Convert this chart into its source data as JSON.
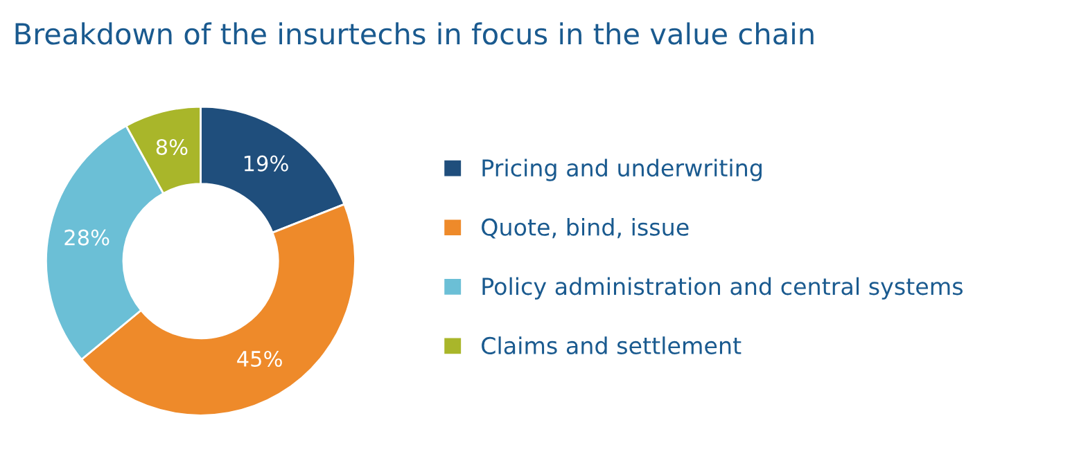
{
  "chart_data": {
    "type": "donut",
    "title": "Breakdown of the insurtechs in focus in the value chain",
    "categories": [
      "Pricing and underwriting",
      "Quote, bind, issue",
      "Policy administration and central systems",
      "Claims and settlement"
    ],
    "values": [
      19,
      45,
      28,
      8
    ],
    "colors": [
      "#1f4e7c",
      "#ee8a2a",
      "#6bbfd6",
      "#a9b62a"
    ],
    "value_labels": [
      "19%",
      "45%",
      "28%",
      "8%"
    ],
    "legend": "right"
  }
}
